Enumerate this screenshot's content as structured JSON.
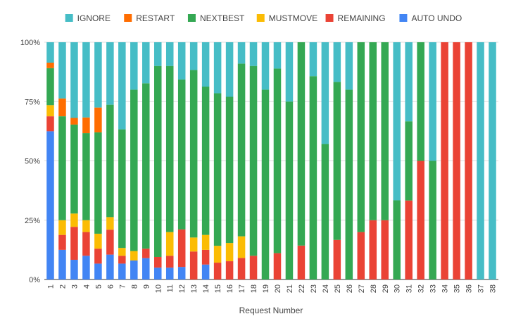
{
  "chart_data": {
    "type": "bar",
    "stacked": "percent",
    "xlabel": "Request Number",
    "ylabel": "",
    "ylim": [
      0,
      100
    ],
    "y_ticks": [
      "0%",
      "25%",
      "50%",
      "75%",
      "100%"
    ],
    "grid": true,
    "legend_position": "top",
    "categories": [
      "1",
      "2",
      "3",
      "4",
      "5",
      "6",
      "7",
      "8",
      "9",
      "10",
      "11",
      "12",
      "13",
      "14",
      "15",
      "16",
      "17",
      "18",
      "19",
      "20",
      "21",
      "22",
      "23",
      "24",
      "25",
      "26",
      "27",
      "28",
      "29",
      "30",
      "31",
      "32",
      "33",
      "34",
      "35",
      "36",
      "37",
      "38"
    ],
    "series": [
      {
        "name": "AUTO UNDO",
        "color": "#4285F4",
        "values": [
          62.5,
          12.5,
          8.3,
          10,
          6.7,
          10.5,
          6.7,
          8,
          9,
          5,
          5,
          5.3,
          0,
          6.3,
          0,
          0,
          0,
          0,
          0,
          0,
          0,
          0,
          0,
          0,
          0,
          0,
          0,
          0,
          0,
          0,
          0,
          0,
          0,
          0,
          0,
          0,
          0,
          0
        ]
      },
      {
        "name": "REMAINING",
        "color": "#EA4335",
        "values": [
          6.3,
          6.3,
          13.9,
          10,
          6.3,
          10.5,
          3.3,
          0,
          4,
          4.5,
          5,
          15.8,
          11.8,
          6.2,
          7.1,
          7.7,
          9.1,
          10,
          0,
          11.1,
          0,
          14.3,
          0,
          0,
          16.7,
          0,
          20,
          25,
          25,
          0,
          33.3,
          50,
          0,
          100,
          100,
          100,
          0,
          0
        ]
      },
      {
        "name": "MUSTMOVE",
        "color": "#FBBC04",
        "values": [
          4.7,
          6.2,
          5.6,
          5,
          6.3,
          5.3,
          3.3,
          4,
          0,
          0,
          10,
          0,
          5.9,
          6.3,
          7.1,
          7.7,
          9.1,
          0,
          0,
          0,
          0,
          0,
          0,
          0,
          0,
          0,
          0,
          0,
          0,
          0,
          0,
          0,
          0,
          0,
          0,
          0,
          0,
          0
        ]
      },
      {
        "name": "NEXTBEST",
        "color": "#34A853",
        "values": [
          15.6,
          43.8,
          37.5,
          36.7,
          42.7,
          47.4,
          50,
          68,
          69.7,
          80.5,
          70,
          63.2,
          70.6,
          62.5,
          64.3,
          61.6,
          72.8,
          80,
          80,
          77.8,
          75,
          85.7,
          85.7,
          57.1,
          66.6,
          80,
          80,
          75,
          75,
          33.4,
          33.4,
          50,
          50,
          0,
          0,
          0,
          0,
          0
        ]
      },
      {
        "name": "RESTART",
        "color": "#FF6D01",
        "values": [
          2.3,
          7.5,
          2.8,
          6.6,
          10.5,
          0,
          0,
          0,
          0,
          0,
          0,
          0,
          0,
          0,
          0,
          0,
          0,
          0,
          0,
          0,
          0,
          0,
          0,
          0,
          0,
          0,
          0,
          0,
          0,
          0,
          0,
          0,
          0,
          0,
          0,
          0,
          0,
          0
        ]
      },
      {
        "name": "IGNORE",
        "color": "#46BDC6",
        "values": [
          8.6,
          23.7,
          31.9,
          31.7,
          27.5,
          26.3,
          36.7,
          20,
          17.3,
          10,
          10,
          15.7,
          11.7,
          18.7,
          21.5,
          23,
          9,
          10,
          20,
          11.1,
          25,
          0,
          14.3,
          42.9,
          16.7,
          20,
          0,
          0,
          0,
          66.6,
          33.3,
          0,
          50,
          0,
          0,
          0,
          100,
          100
        ]
      }
    ]
  }
}
